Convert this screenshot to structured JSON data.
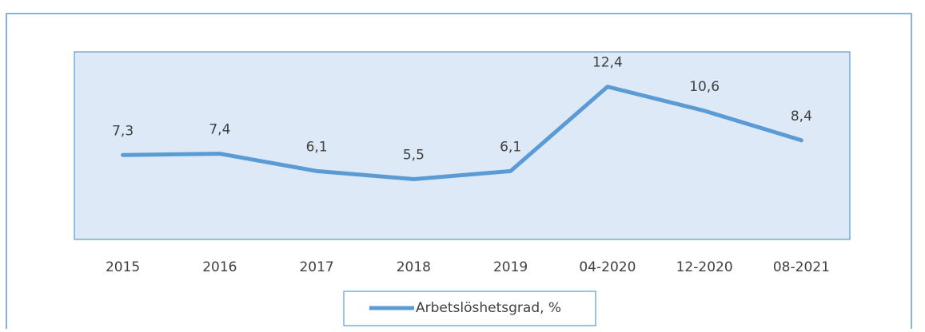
{
  "chart_data": {
    "type": "line",
    "categories": [
      "2015",
      "2016",
      "2017",
      "2018",
      "2019",
      "04-2020",
      "12-2020",
      "08-2021"
    ],
    "series": [
      {
        "name": "Arbetslöshetsgrad, %",
        "color": "#5b9bd5",
        "values": [
          7.3,
          7.4,
          6.1,
          5.5,
          6.1,
          12.4,
          10.6,
          8.4
        ],
        "value_labels": [
          "7,3",
          "7,4",
          "6,1",
          "5,5",
          "6,1",
          "12,4",
          "10,6",
          "8,4"
        ]
      }
    ],
    "ylim": [
      1,
      15
    ]
  }
}
